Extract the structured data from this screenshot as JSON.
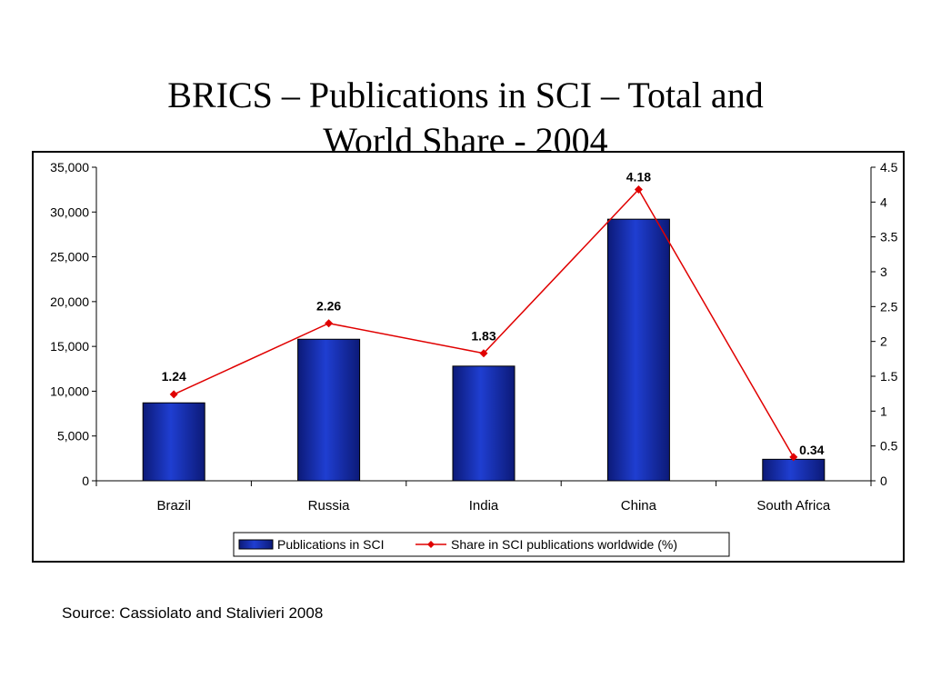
{
  "slide": {
    "title_line1": "BRICS – Publications in SCI – Total and",
    "title_line2": "World Share - 2004",
    "source": "Source: Cassiolato and Stalivieri 2008"
  },
  "colors": {
    "bar": "#1f3ed1",
    "line": "#e00000"
  },
  "chart_data": {
    "type": "bar",
    "categories": [
      "Brazil",
      "Russia",
      "India",
      "China",
      "South Africa"
    ],
    "series": [
      {
        "name": "Publications in SCI",
        "type": "bar",
        "axis": "left",
        "values": [
          8700,
          15800,
          12800,
          29200,
          2400
        ]
      },
      {
        "name": "Share in SCI publications worldwide (%)",
        "type": "line",
        "axis": "right",
        "values": [
          1.24,
          2.26,
          1.83,
          4.18,
          0.34
        ],
        "labels": [
          "1.24",
          "2.26",
          "1.83",
          "4.18",
          "0.34"
        ]
      }
    ],
    "y_left": {
      "min": 0,
      "max": 35000,
      "ticks": [
        0,
        5000,
        10000,
        15000,
        20000,
        25000,
        30000,
        35000
      ],
      "tick_labels": [
        "0",
        "5,000",
        "10,000",
        "15,000",
        "20,000",
        "25,000",
        "30,000",
        "35,000"
      ]
    },
    "y_right": {
      "min": 0,
      "max": 4.5,
      "ticks": [
        0,
        0.5,
        1,
        1.5,
        2,
        2.5,
        3,
        3.5,
        4,
        4.5
      ],
      "tick_labels": [
        "0",
        "0.5",
        "1",
        "1.5",
        "2",
        "2.5",
        "3",
        "3.5",
        "4",
        "4.5"
      ]
    },
    "grid": false,
    "legend_position": "bottom"
  }
}
